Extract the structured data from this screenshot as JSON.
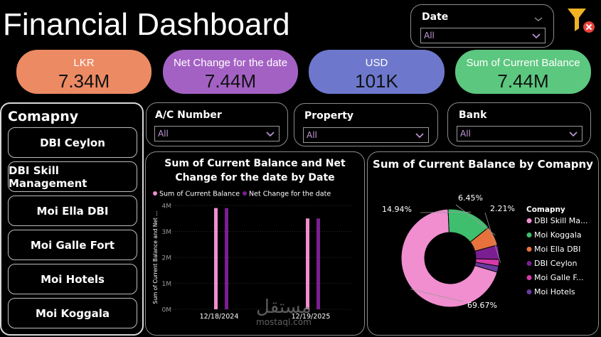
{
  "title": "Financial Dashboard",
  "date_slicer": {
    "label": "Date",
    "value": "All"
  },
  "kpis": [
    {
      "label": "LKR",
      "value": "7.34M",
      "color": "#ec8a63"
    },
    {
      "label": "Net Change for the date",
      "value": "7.44M",
      "color": "#a461c4"
    },
    {
      "label": "USD",
      "value": "101K",
      "color": "#6d78cc"
    },
    {
      "label": "Sum of Current Balance",
      "value": "7.44M",
      "color": "#5cc77f"
    }
  ],
  "company_slicer": {
    "title": "Comapny",
    "items": [
      "DBI Ceylon",
      "DBI Skill Management",
      "Moi Ella DBI",
      "Moi Galle Fort",
      "Moi Hotels",
      "Moi Koggala"
    ]
  },
  "filters": {
    "ac_number": {
      "label": "A/C Number",
      "value": "All"
    },
    "property": {
      "label": "Property",
      "value": "All"
    },
    "bank": {
      "label": "Bank",
      "value": "All"
    }
  },
  "bar_chart_title_line1": "Sum of Current Balance and Net",
  "bar_chart_title_line2": "Change for the date by Date",
  "pie_chart_title": "Sum of Current Balance by Comapny",
  "watermark": {
    "arabic": "مستقل",
    "latin": "mostaql.com"
  },
  "chart_data": [
    {
      "type": "bar",
      "title": "Sum of Current Balance and Net Change for the date by Date",
      "categories": [
        "12/18/2024",
        "12/19/2025"
      ],
      "series": [
        {
          "name": "Sum of Current Balance",
          "color": "#f08ecf",
          "values": [
            3.9,
            3.5
          ]
        },
        {
          "name": "Net Change for the date",
          "color": "#7b1e91",
          "values": [
            3.9,
            3.5
          ]
        }
      ],
      "ylabel": "Sum of Current Balance and Net ...",
      "yticks": [
        "0M",
        "1M",
        "2M",
        "3M",
        "4M"
      ],
      "ylim": [
        0,
        4
      ],
      "legend": "top"
    },
    {
      "type": "pie",
      "title": "Sum of Current Balance by Comapny",
      "legend_title": "Comapny",
      "legend": "right",
      "slices": [
        {
          "name": "DBI Skill Ma...",
          "value": 69.67,
          "label": "69.67%",
          "color": "#f08ecf"
        },
        {
          "name": "Moi Koggala",
          "value": 14.94,
          "label": "14.94%",
          "color": "#3fbf6e"
        },
        {
          "name": "Moi Ella DBI",
          "value": 6.45,
          "label": "6.45%",
          "color": "#e8723c"
        },
        {
          "name": "DBI Ceylon",
          "value": 4.73,
          "label": "",
          "color": "#7b1e91"
        },
        {
          "name": "Moi Galle F...",
          "value": 2.21,
          "label": "2.21%",
          "color": "#d63aa9"
        },
        {
          "name": "Moi Hotels",
          "value": 2.0,
          "label": "",
          "color": "#6a3a9e"
        }
      ]
    }
  ]
}
